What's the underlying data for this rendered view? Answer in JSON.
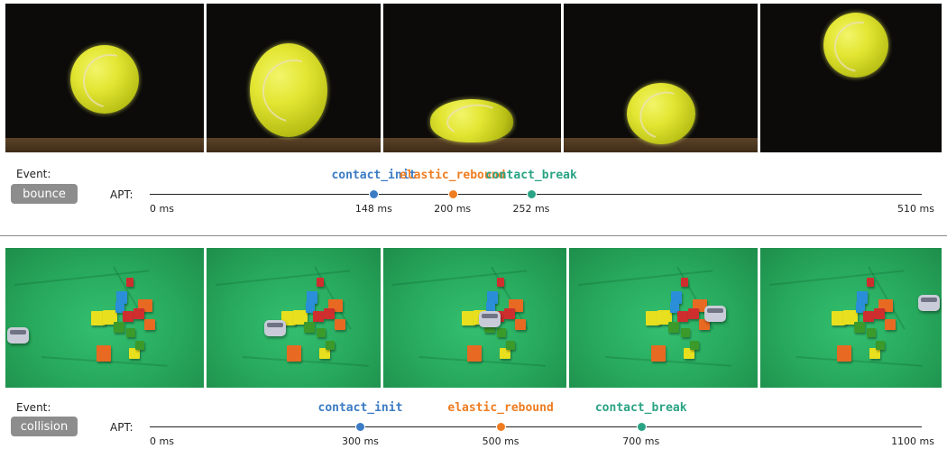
{
  "colors": {
    "contact_init": "#3b7cc4",
    "elastic_rebound": "#ee7d22",
    "contact_break": "#2aa385",
    "badge": "#8d8d8d"
  },
  "rows": [
    {
      "event_label": "Event:",
      "event": "bounce",
      "apt_label": "APT:",
      "axis_range": [
        0,
        510
      ],
      "start_tick": "0 ms",
      "end_tick": "510 ms",
      "markers": [
        {
          "name": "contact_init",
          "value": 148,
          "tick": "148 ms"
        },
        {
          "name": "elastic_rebound",
          "value": 200,
          "tick": "200 ms"
        },
        {
          "name": "contact_break",
          "value": 252,
          "tick": "252 ms"
        }
      ]
    },
    {
      "event_label": "Event:",
      "event": "collision",
      "apt_label": "APT:",
      "axis_range": [
        0,
        1100
      ],
      "start_tick": "0 ms",
      "end_tick": "1100 ms",
      "markers": [
        {
          "name": "contact_init",
          "value": 300,
          "tick": "300 ms"
        },
        {
          "name": "elastic_rebound",
          "value": 500,
          "tick": "500 ms"
        },
        {
          "name": "contact_break",
          "value": 700,
          "tick": "700 ms"
        }
      ]
    }
  ]
}
